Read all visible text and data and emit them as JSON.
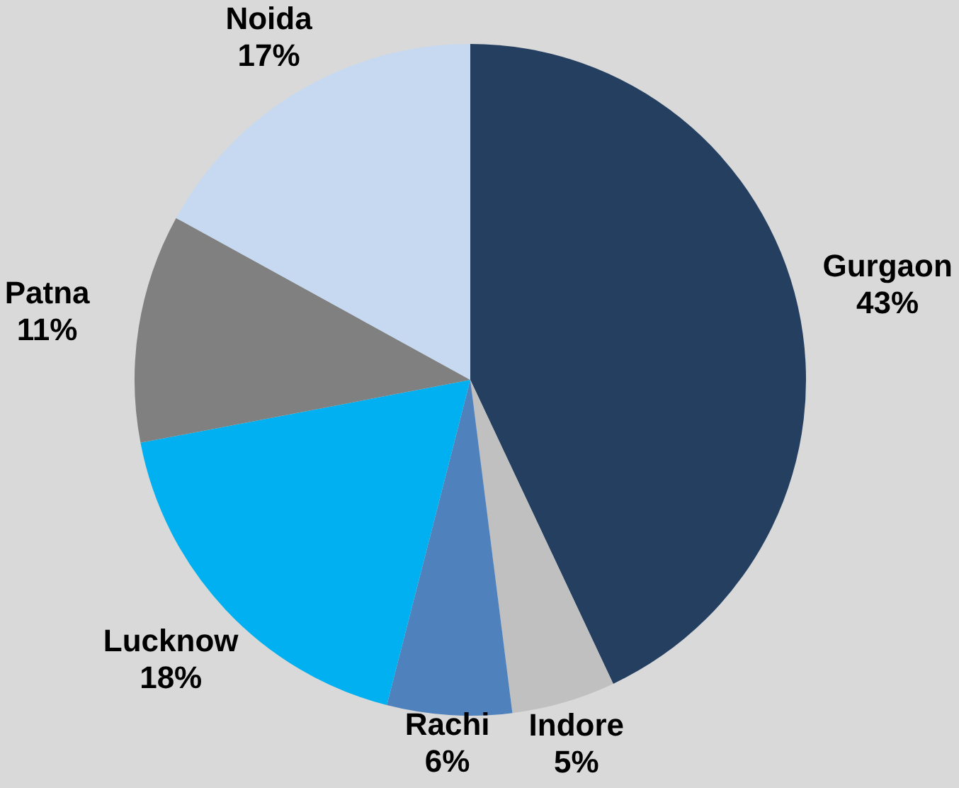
{
  "chart_data": {
    "type": "pie",
    "categories": [
      "Gurgaon",
      "Indore",
      "Rachi",
      "Lucknow",
      "Patna",
      "Noida"
    ],
    "values": [
      43,
      5,
      6,
      18,
      11,
      17
    ],
    "colors": [
      "#243f60",
      "#c0c0c0",
      "#4f81bd",
      "#00b0f0",
      "#808080",
      "#c6d9f1"
    ],
    "value_labels": [
      "43%",
      "5%",
      "6%",
      "18%",
      "11%",
      "17%"
    ],
    "legend": false
  }
}
